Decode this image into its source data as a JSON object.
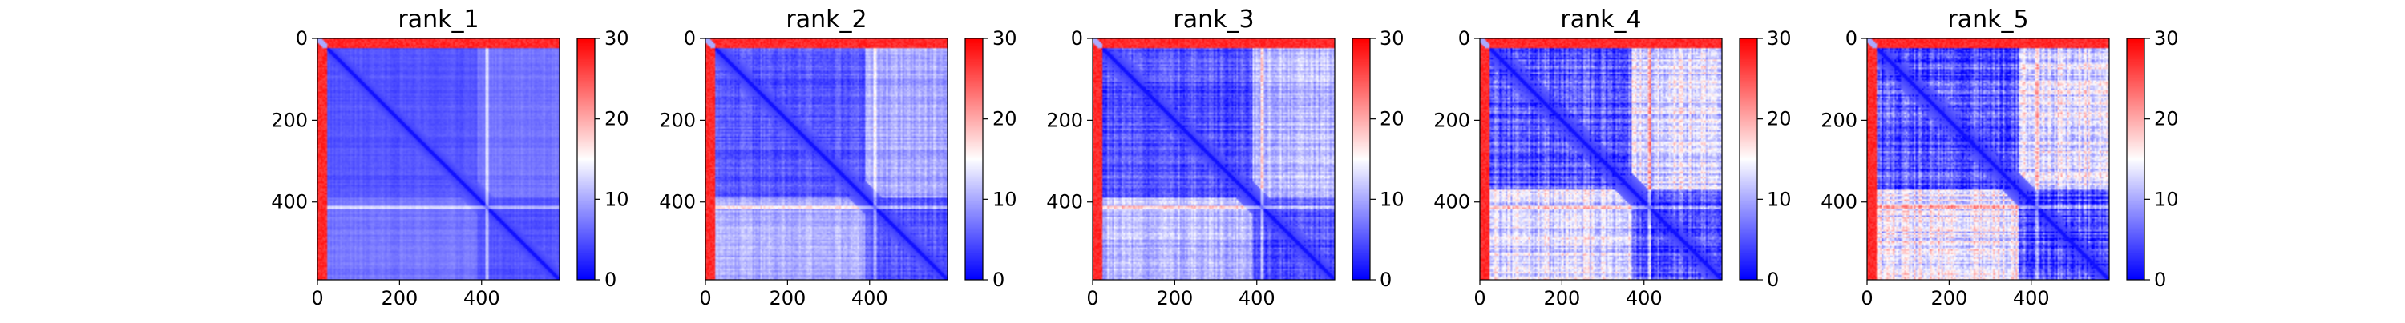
{
  "chart_data": [
    {
      "type": "heatmap",
      "title": "rank_1",
      "matrix_size": 590,
      "xlim": [
        0,
        590
      ],
      "ylim": [
        590,
        0
      ],
      "xticks": [
        0,
        200,
        400
      ],
      "yticks": [
        0,
        200,
        400
      ],
      "colorbar": {
        "min": 0,
        "max": 30,
        "ticks": [
          0,
          10,
          20,
          30
        ],
        "colormap": "bwr"
      },
      "pattern": {
        "edge_band_end": 22,
        "domain_boundary": 390,
        "base_value": 5,
        "diagonal_value": 1,
        "offdomain_value": 7,
        "noise_level": 0.04,
        "hot_row": 413
      }
    },
    {
      "type": "heatmap",
      "title": "rank_2",
      "matrix_size": 590,
      "xlim": [
        0,
        590
      ],
      "ylim": [
        590,
        0
      ],
      "xticks": [
        0,
        200,
        400
      ],
      "yticks": [
        0,
        200,
        400
      ],
      "colorbar": {
        "min": 0,
        "max": 30,
        "ticks": [
          0,
          10,
          20,
          30
        ],
        "colormap": "bwr"
      },
      "pattern": {
        "edge_band_end": 22,
        "domain_boundary": 390,
        "base_value": 5,
        "diagonal_value": 1,
        "offdomain_value": 10,
        "noise_level": 0.1,
        "hot_row": 413
      }
    },
    {
      "type": "heatmap",
      "title": "rank_3",
      "matrix_size": 590,
      "xlim": [
        0,
        590
      ],
      "ylim": [
        590,
        0
      ],
      "xticks": [
        0,
        200,
        400
      ],
      "yticks": [
        0,
        200,
        400
      ],
      "colorbar": {
        "min": 0,
        "max": 30,
        "ticks": [
          0,
          10,
          20,
          30
        ],
        "colormap": "bwr"
      },
      "pattern": {
        "edge_band_end": 22,
        "domain_boundary": 390,
        "base_value": 5,
        "diagonal_value": 1,
        "offdomain_value": 11,
        "noise_level": 0.13,
        "hot_row": 413
      }
    },
    {
      "type": "heatmap",
      "title": "rank_4",
      "matrix_size": 590,
      "xlim": [
        0,
        590
      ],
      "ylim": [
        590,
        0
      ],
      "xticks": [
        0,
        200,
        400
      ],
      "yticks": [
        0,
        200,
        400
      ],
      "colorbar": {
        "min": 0,
        "max": 30,
        "ticks": [
          0,
          10,
          20,
          30
        ],
        "colormap": "bwr"
      },
      "pattern": {
        "edge_band_end": 22,
        "domain_boundary": 370,
        "base_value": 5,
        "diagonal_value": 1,
        "offdomain_value": 13,
        "noise_level": 0.2,
        "hot_row": 413
      }
    },
    {
      "type": "heatmap",
      "title": "rank_5",
      "matrix_size": 590,
      "xlim": [
        0,
        590
      ],
      "ylim": [
        590,
        0
      ],
      "xticks": [
        0,
        200,
        400
      ],
      "yticks": [
        0,
        200,
        400
      ],
      "colorbar": {
        "min": 0,
        "max": 30,
        "ticks": [
          0,
          10,
          20,
          30
        ],
        "colormap": "bwr"
      },
      "pattern": {
        "edge_band_end": 22,
        "domain_boundary": 370,
        "base_value": 5,
        "diagonal_value": 1,
        "offdomain_value": 14,
        "noise_level": 0.22,
        "hot_row": 413
      }
    }
  ]
}
